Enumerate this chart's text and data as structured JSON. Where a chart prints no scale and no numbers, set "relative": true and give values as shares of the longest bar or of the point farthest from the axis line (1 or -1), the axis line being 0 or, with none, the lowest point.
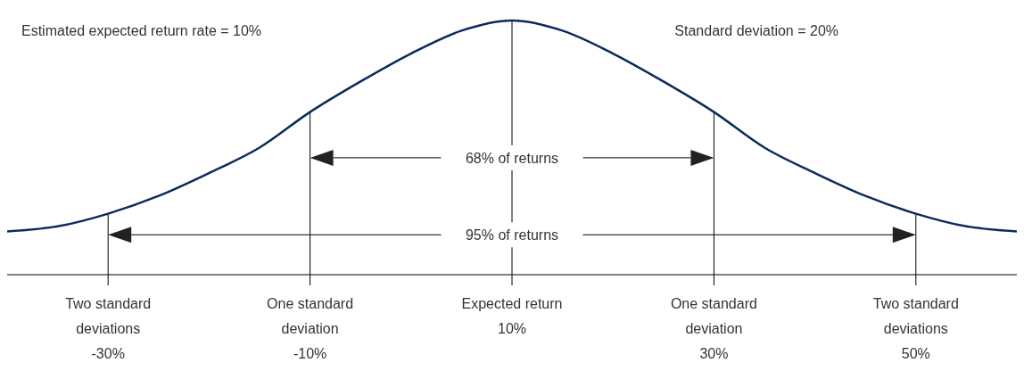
{
  "chart_data": {
    "type": "line",
    "relative": true,
    "x": [
      -40,
      -35,
      -30,
      -25,
      -20,
      -15,
      -10,
      -5,
      0,
      5,
      10,
      15,
      20,
      25,
      30,
      35,
      40,
      45,
      50,
      55,
      60
    ],
    "series": [
      {
        "color": "#0d2a5c",
        "values": [
          0.17,
          0.19,
          0.24,
          0.31,
          0.4,
          0.5,
          0.64,
          0.76,
          0.87,
          0.96,
          1,
          0.96,
          0.87,
          0.76,
          0.64,
          0.5,
          0.4,
          0.31,
          0.24,
          0.19,
          0.17
        ]
      }
    ],
    "xlim": [
      -40,
      60
    ],
    "xticks": [
      {
        "value": -30,
        "label": "Two standard\ndeviations\n-30%"
      },
      {
        "value": -10,
        "label": "One standard\ndeviation\n-10%"
      },
      {
        "value": 10,
        "label": "Expected return\n\n10%"
      },
      {
        "value": 30,
        "label": "One standard\ndeviation\n30%"
      },
      {
        "value": 50,
        "label": "Two standard\ndeviations\n50%"
      }
    ],
    "ref_lines": [
      {
        "axis": "x",
        "value": -30,
        "color": "#000000"
      },
      {
        "axis": "x",
        "value": -10,
        "color": "#000000"
      },
      {
        "axis": "x",
        "value": 10,
        "color": "#000000"
      },
      {
        "axis": "x",
        "value": 30,
        "color": "#000000"
      },
      {
        "axis": "x",
        "value": 50,
        "color": "#000000"
      }
    ],
    "annotations": [
      "Estimated expected return rate = 10%",
      "Standard deviation = 20%",
      {
        "text": "68% of returns",
        "x": 10,
        "y": 0.46
      },
      {
        "text": "95% of returns",
        "x": 10,
        "y": 0.157
      }
    ],
    "marker": "none",
    "line_style": "solid"
  }
}
